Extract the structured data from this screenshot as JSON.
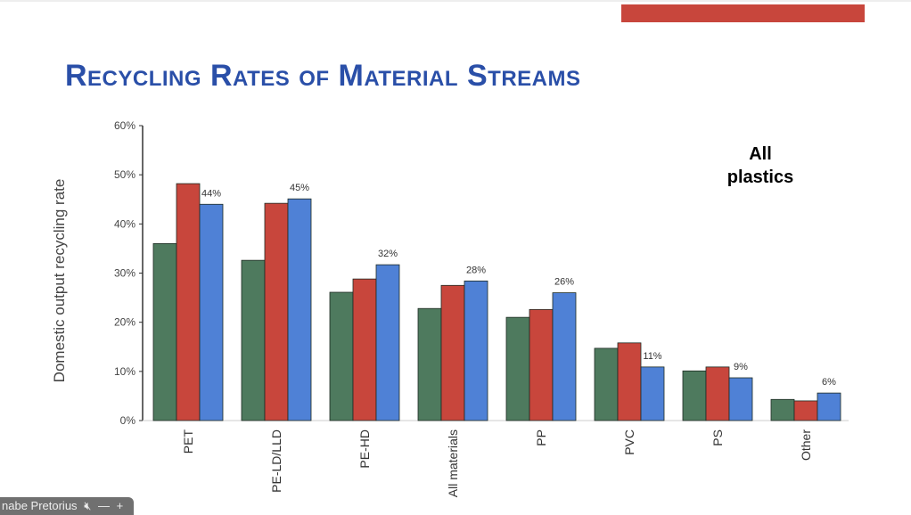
{
  "slide": {
    "title": "Recycling Rates of Material Streams",
    "accent_color": "#c8463c"
  },
  "chart_data": {
    "type": "bar",
    "title": "",
    "xlabel": "",
    "ylabel": "Domestic output recycling rate",
    "ylim": [
      0,
      60
    ],
    "yticks": [
      "0%",
      "10%",
      "20%",
      "30%",
      "40%",
      "50%",
      "60%"
    ],
    "grid": false,
    "annotation": "All plastics",
    "categories": [
      "PET",
      "PE-LD/LLD",
      "PE-HD",
      "All materials",
      "PP",
      "PVC",
      "PS",
      "Other"
    ],
    "series": [
      {
        "color": "#4e7a5e",
        "values": [
          36.0,
          32.6,
          26.1,
          22.8,
          21.0,
          14.7,
          10.1,
          4.3
        ]
      },
      {
        "color": "#c8463c",
        "values": [
          48.2,
          44.2,
          28.8,
          27.5,
          22.6,
          15.8,
          10.9,
          4.0
        ]
      },
      {
        "color": "#4f81d6",
        "values": [
          44.0,
          45.1,
          31.7,
          28.4,
          26.0,
          10.9,
          8.7,
          5.6
        ]
      }
    ],
    "data_labels": [
      "44%",
      "45%",
      "32%",
      "28%",
      "26%",
      "11%",
      "9%",
      "6%"
    ]
  },
  "participant": {
    "name": "nabe Pretorius",
    "mic_icon": "mic-muted-icon",
    "minus": "—",
    "plus": "+"
  }
}
